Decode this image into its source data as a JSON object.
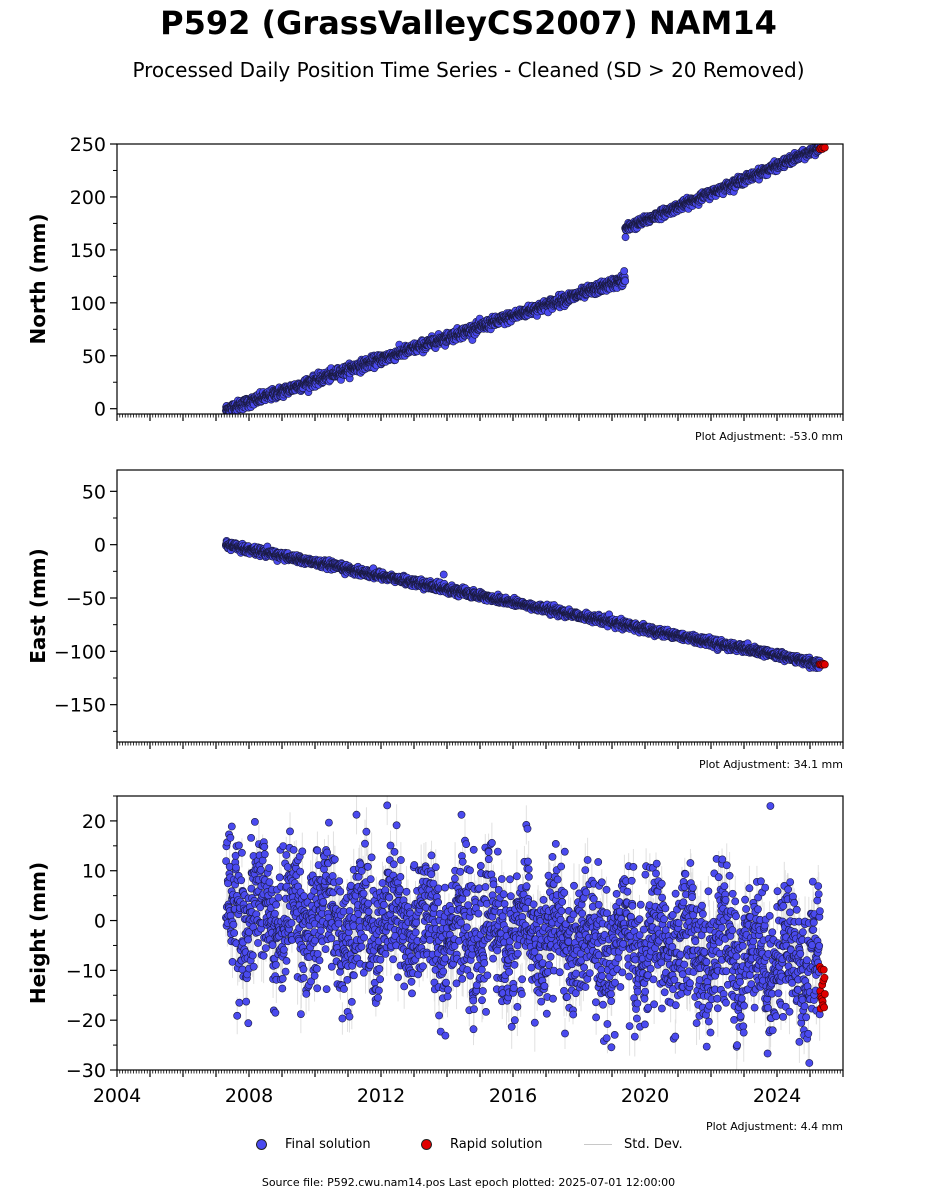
{
  "title": "P592 (GrassValleyCS2007) NAM14",
  "subtitle": "Processed Daily Position Time Series - Cleaned (SD > 20 Removed)",
  "colors": {
    "final": "#4a4aef",
    "rapid": "#e00000",
    "stddev": "#c8c8c8"
  },
  "legend": {
    "final": "Final solution",
    "rapid": "Rapid solution",
    "stddev": "Std. Dev."
  },
  "source_note": "Source file: P592.cwu.nam14.pos  Last epoch plotted: 2025-07-01 12:00:00",
  "chart_data": [
    {
      "type": "scatter",
      "ylabel": "North (mm)",
      "ylim": [
        -5,
        250
      ],
      "yticks": [
        0,
        50,
        100,
        150,
        200,
        250
      ],
      "xlim": [
        2004,
        2026
      ],
      "xticks": [
        2004,
        2008,
        2012,
        2016,
        2020,
        2024
      ],
      "show_xtick_labels": false,
      "adjustment": "Plot Adjustment: -53.0 mm",
      "segments": [
        {
          "x": [
            2007.3,
            2019.4
          ],
          "y": [
            -1,
            122
          ],
          "noise": 2.5
        },
        {
          "x": [
            2019.4,
            2025.3
          ],
          "y": [
            170,
            246
          ],
          "noise": 2.0
        }
      ],
      "outliers": [
        {
          "x": 2019.37,
          "y": 130
        },
        {
          "x": 2019.41,
          "y": 162
        }
      ],
      "rapid": {
        "x": [
          2025.3,
          2025.45
        ],
        "y": 246
      }
    },
    {
      "type": "scatter",
      "ylabel": "East (mm)",
      "ylim": [
        -185,
        70
      ],
      "yticks": [
        -150,
        -100,
        -50,
        0,
        50
      ],
      "xlim": [
        2004,
        2026
      ],
      "xticks": [
        2004,
        2008,
        2012,
        2016,
        2020,
        2024
      ],
      "show_xtick_labels": false,
      "adjustment": "Plot Adjustment: 34.1 mm",
      "segments": [
        {
          "x": [
            2007.3,
            2025.3
          ],
          "y": [
            0,
            -112
          ],
          "noise": 1.8
        }
      ],
      "outliers": [
        {
          "x": 2013.9,
          "y": -28
        }
      ],
      "rapid": {
        "x": [
          2025.3,
          2025.45
        ],
        "y": -112
      }
    },
    {
      "type": "scatter",
      "ylabel": "Height (mm)",
      "ylim": [
        -30,
        25
      ],
      "yticks": [
        -30,
        -20,
        -10,
        0,
        10,
        20
      ],
      "xlim": [
        2004,
        2026
      ],
      "xticks": [
        2004,
        2008,
        2012,
        2016,
        2020,
        2024
      ],
      "xtick_labels": [
        "2004",
        "2008",
        "2012",
        "2016",
        "2020",
        "2024"
      ],
      "show_xtick_labels": true,
      "adjustment": "Plot Adjustment: 4.4 mm",
      "segments": [
        {
          "x": [
            2007.3,
            2025.3
          ],
          "y": [
            2,
            -8
          ],
          "noise": 6.5,
          "seasonal": 4.5
        }
      ],
      "outliers": [
        {
          "x": 2023.8,
          "y": 23
        },
        {
          "x": 2008.8,
          "y": -18.5
        }
      ],
      "rapid": {
        "x": [
          2025.3,
          2025.45
        ],
        "y": [
          -9,
          -18
        ]
      }
    }
  ]
}
